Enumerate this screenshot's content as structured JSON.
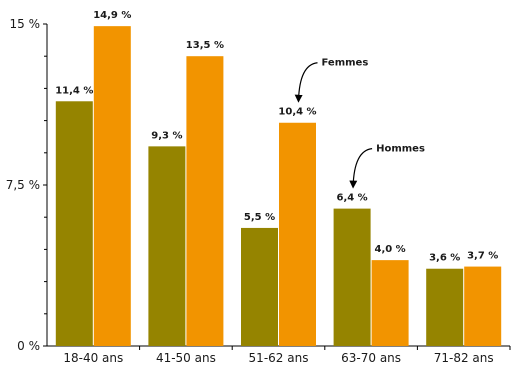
{
  "chart_data": {
    "type": "bar",
    "categories": [
      "18-40 ans",
      "41-50 ans",
      "51-62 ans",
      "63-70 ans",
      "71-82 ans"
    ],
    "series": [
      {
        "values": [
          11.4,
          9.3,
          5.5,
          6.4,
          3.6
        ],
        "labels": [
          "11,4 %",
          "9,3 %",
          "5,5 %",
          "6,4 %",
          "3,6 %"
        ],
        "color": "#958400"
      },
      {
        "values": [
          14.9,
          13.5,
          10.4,
          4.0,
          3.7
        ],
        "labels": [
          "14,9 %",
          "13,5 %",
          "10,4 %",
          "4,0 %",
          "3,7 %"
        ],
        "color": "#F29400"
      }
    ],
    "ylim": [
      0,
      15
    ],
    "yticks": [
      0,
      7.5,
      15
    ],
    "ytick_labels": [
      "0 %",
      "7,5 %",
      "15 %"
    ],
    "grid": false,
    "annotations": [
      {
        "text": "Femmes",
        "series": 1,
        "category": "51-62 ans"
      },
      {
        "text": "Hommes",
        "series": 0,
        "category": "63-70 ans"
      }
    ]
  }
}
